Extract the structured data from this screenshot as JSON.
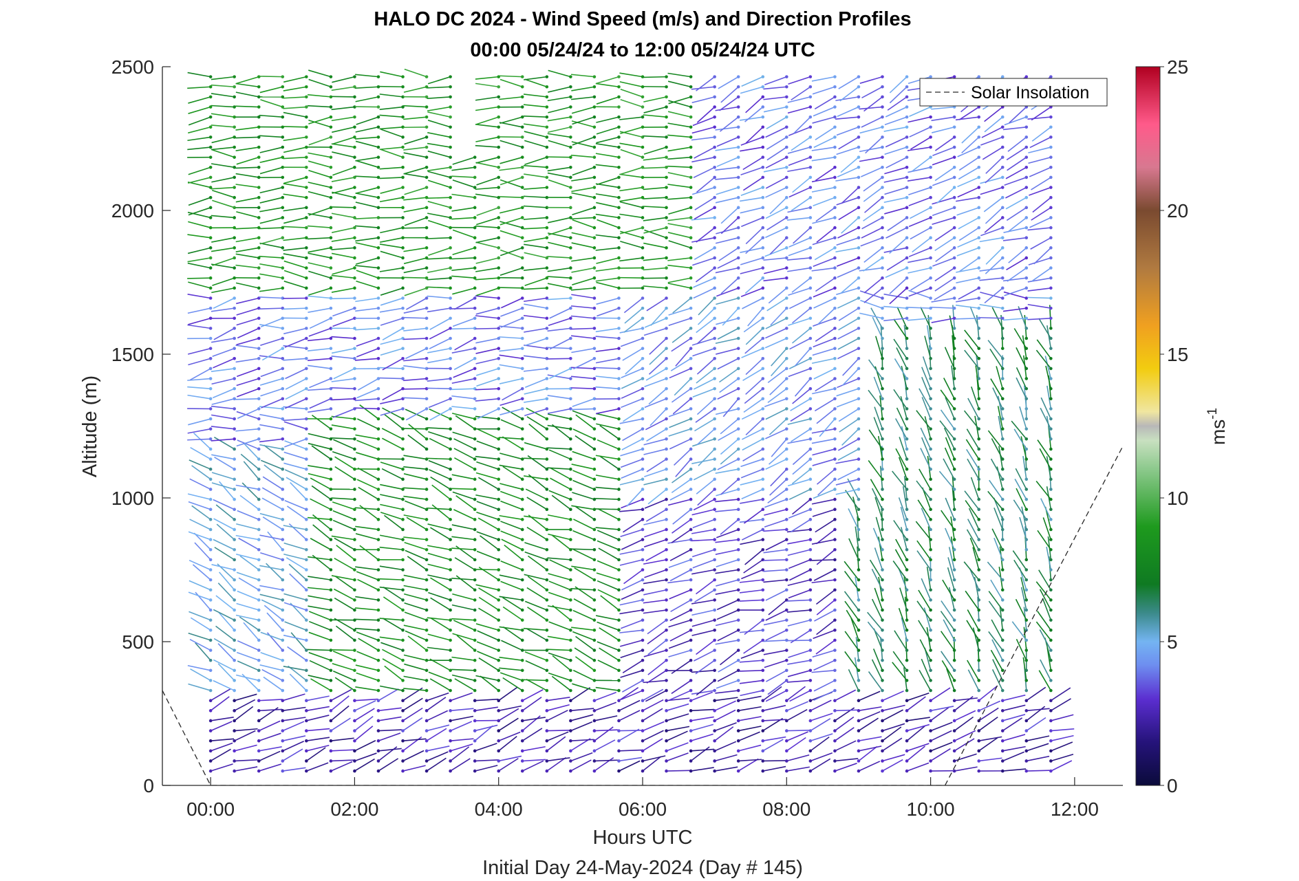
{
  "chart_data": {
    "type": "wind-barb profile (time-height)",
    "title_line1": "HALO DC 2024 - Wind Speed (m/s) and Direction Profiles",
    "title_line2": "00:00 05/24/24 to 12:00 05/24/24  UTC",
    "xlabel": "Hours UTC",
    "xlabel2": "Initial Day 24-May-2024 (Day # 145)",
    "ylabel": "Altitude (m)",
    "xlim_hours": [
      -0.67,
      12.67
    ],
    "ylim": [
      0,
      2500
    ],
    "xticks": [
      {
        "value": 0,
        "label": "00:00"
      },
      {
        "value": 2,
        "label": "02:00"
      },
      {
        "value": 4,
        "label": "04:00"
      },
      {
        "value": 6,
        "label": "06:00"
      },
      {
        "value": 8,
        "label": "08:00"
      },
      {
        "value": 10,
        "label": "10:00"
      },
      {
        "value": 12,
        "label": "12:00"
      }
    ],
    "yticks": [
      0,
      500,
      1000,
      1500,
      2000,
      2500
    ],
    "colorbar": {
      "label": "ms",
      "label_superscript": "-1",
      "range": [
        0,
        25
      ],
      "ticks": [
        0,
        5,
        10,
        15,
        20,
        25
      ],
      "stops": [
        {
          "v": 0,
          "c": "#0b0b3a"
        },
        {
          "v": 1.5,
          "c": "#25137a"
        },
        {
          "v": 3,
          "c": "#5b2ed0"
        },
        {
          "v": 4.2,
          "c": "#6e8ff0"
        },
        {
          "v": 5,
          "c": "#74b4f2"
        },
        {
          "v": 6,
          "c": "#3b8a8a"
        },
        {
          "v": 7,
          "c": "#0f7a22"
        },
        {
          "v": 9,
          "c": "#1e9a1e"
        },
        {
          "v": 11,
          "c": "#8cc98c"
        },
        {
          "v": 12,
          "c": "#c8e0c0"
        },
        {
          "v": 12.5,
          "c": "#b8b8b8"
        },
        {
          "v": 13,
          "c": "#f0e6a0"
        },
        {
          "v": 14.5,
          "c": "#f2cc10"
        },
        {
          "v": 16,
          "c": "#f0a020"
        },
        {
          "v": 18,
          "c": "#b07a40"
        },
        {
          "v": 20,
          "c": "#7a4a30"
        },
        {
          "v": 21.5,
          "c": "#d87890"
        },
        {
          "v": 23,
          "c": "#ff5a8a"
        },
        {
          "v": 25,
          "c": "#b00020"
        }
      ]
    },
    "legend": {
      "label": "Solar Insolation",
      "position": "top-right",
      "line_style": "dashed"
    },
    "series": [
      {
        "name": "Solar Insolation",
        "type": "line",
        "x_hours": [
          -0.67,
          0.0,
          9.9,
          10.2,
          12.67
        ],
        "y": [
          330,
          0,
          0,
          0,
          1180
        ]
      }
    ],
    "profile_times_hours": [
      0.0,
      0.33,
      0.67,
      1.0,
      1.33,
      1.67,
      2.0,
      2.33,
      2.67,
      3.0,
      3.33,
      3.67,
      4.0,
      4.33,
      4.67,
      5.0,
      5.33,
      5.67,
      6.0,
      6.33,
      6.67,
      7.0,
      7.33,
      7.67,
      8.0,
      8.33,
      8.67,
      9.0,
      9.33,
      9.67,
      10.0,
      10.33,
      10.67,
      11.0,
      11.33,
      11.67
    ],
    "altitude_step_m": 35,
    "gap": {
      "x_hours": [
        3.5,
        3.8
      ],
      "y": [
        2200,
        2500
      ]
    },
    "regimes": [
      {
        "t0": 0.0,
        "t1": 12.0,
        "z0": 0,
        "z1": 300,
        "speed": 2.5,
        "dir_deg": 20,
        "dir_to": 160
      },
      {
        "t0": 0.0,
        "t1": 1.5,
        "z0": 300,
        "z1": 1200,
        "speed": 5.0,
        "dir_to": 30
      },
      {
        "t0": 1.5,
        "t1": 6.0,
        "z0": 300,
        "z1": 1300,
        "speed": 8.0,
        "dir_to": 20
      },
      {
        "t0": 6.0,
        "t1": 9.0,
        "z0": 300,
        "z1": 1000,
        "speed": 3.0,
        "dir_to": -20
      },
      {
        "t0": 9.0,
        "t1": 12.0,
        "z0": 300,
        "z1": 1600,
        "speed": 6.5,
        "dir_to": 70
      },
      {
        "t0": 0.0,
        "t1": 6.0,
        "z0": 1300,
        "z1": 1700,
        "speed": 4.0,
        "dir_to": -10
      },
      {
        "t0": 6.0,
        "t1": 9.0,
        "z0": 1000,
        "z1": 1700,
        "speed": 4.5,
        "dir_to": -30
      },
      {
        "t0": 0.0,
        "t1": 7.0,
        "z0": 1700,
        "z1": 2500,
        "speed": 8.5,
        "dir_to": 0
      },
      {
        "t0": 7.0,
        "t1": 12.0,
        "z0": 1700,
        "z1": 2500,
        "speed": 4.0,
        "dir_to": -25
      }
    ]
  }
}
